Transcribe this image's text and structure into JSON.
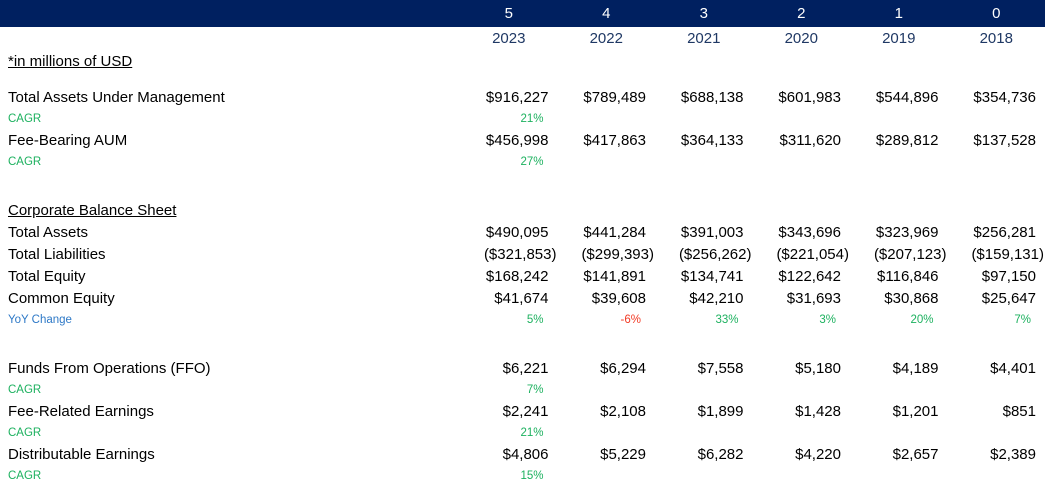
{
  "colors": {
    "header_bg": "#002060",
    "year_text": "#1f3864",
    "body_text": "#000000",
    "positive_green": "#1db15f",
    "negative_red": "#f23a25",
    "yoy_label_blue": "#2e79c7"
  },
  "header": {
    "indices": [
      "5",
      "4",
      "3",
      "2",
      "1",
      "0"
    ],
    "years": [
      "2023",
      "2022",
      "2021",
      "2020",
      "2019",
      "2018"
    ]
  },
  "rows": [
    {
      "kind": "note",
      "label": "*in millions of USD"
    },
    {
      "kind": "spacer",
      "h": 13
    },
    {
      "kind": "data",
      "label": "Total Assets Under Management",
      "values": [
        "$916,227",
        "$789,489",
        "$688,138",
        "$601,983",
        "$544,896",
        "$354,736"
      ]
    },
    {
      "kind": "cagr",
      "label": "CAGR",
      "values": [
        "21%",
        "",
        "",
        "",
        "",
        ""
      ]
    },
    {
      "kind": "data",
      "label": "Fee-Bearing AUM",
      "values": [
        "$456,998",
        "$417,863",
        "$364,133",
        "$311,620",
        "$289,812",
        "$137,528"
      ]
    },
    {
      "kind": "cagr",
      "label": "CAGR",
      "values": [
        "27%",
        "",
        "",
        "",
        "",
        ""
      ]
    },
    {
      "kind": "spacer",
      "h": 27
    },
    {
      "kind": "section",
      "label": "Corporate Balance Sheet"
    },
    {
      "kind": "data",
      "label": "Total Assets",
      "values": [
        "$490,095",
        "$441,284",
        "$391,003",
        "$343,696",
        "$323,969",
        "$256,281"
      ]
    },
    {
      "kind": "data",
      "label": "Total Liabilities",
      "negative": true,
      "values": [
        "($321,853)",
        "($299,393)",
        "($256,262)",
        "($221,054)",
        "($207,123)",
        "($159,131)"
      ]
    },
    {
      "kind": "data",
      "label": "Total Equity",
      "values": [
        "$168,242",
        "$141,891",
        "$134,741",
        "$122,642",
        "$116,846",
        "$97,150"
      ]
    },
    {
      "kind": "data",
      "label": "Common Equity",
      "values": [
        "$41,674",
        "$39,608",
        "$42,210",
        "$31,693",
        "$30,868",
        "$25,647"
      ]
    },
    {
      "kind": "yoy",
      "label": "YoY Change",
      "values": [
        "5%",
        "-6%",
        "33%",
        "3%",
        "20%",
        "7%"
      ],
      "value_colors": [
        "green",
        "red",
        "green",
        "green",
        "green",
        "green"
      ]
    },
    {
      "kind": "spacer",
      "h": 26
    },
    {
      "kind": "data",
      "label": "Funds From Operations (FFO)",
      "values": [
        "$6,221",
        "$6,294",
        "$7,558",
        "$5,180",
        "$4,189",
        "$4,401"
      ]
    },
    {
      "kind": "cagr",
      "label": "CAGR",
      "values": [
        "7%",
        "",
        "",
        "",
        "",
        ""
      ]
    },
    {
      "kind": "data",
      "label": "Fee-Related Earnings",
      "values": [
        "$2,241",
        "$2,108",
        "$1,899",
        "$1,428",
        "$1,201",
        "$851"
      ]
    },
    {
      "kind": "cagr",
      "label": "CAGR",
      "values": [
        "21%",
        "",
        "",
        "",
        "",
        ""
      ]
    },
    {
      "kind": "data",
      "label": "Distributable Earnings",
      "values": [
        "$4,806",
        "$5,229",
        "$6,282",
        "$4,220",
        "$2,657",
        "$2,389"
      ]
    },
    {
      "kind": "cagr",
      "label": "CAGR",
      "values": [
        "15%",
        "",
        "",
        "",
        "",
        ""
      ]
    }
  ]
}
